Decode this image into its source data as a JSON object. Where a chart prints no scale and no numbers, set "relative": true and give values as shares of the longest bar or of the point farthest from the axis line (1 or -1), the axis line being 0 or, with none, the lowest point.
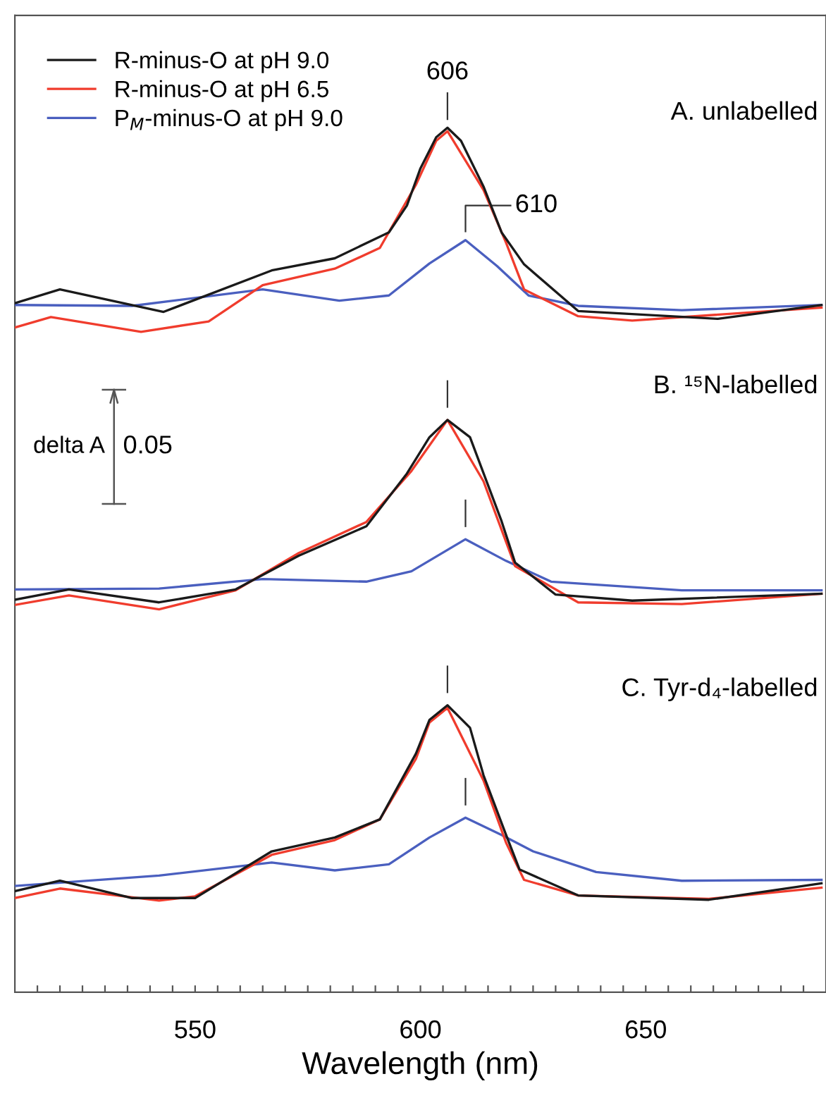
{
  "chart_data": {
    "type": "line",
    "relative": true,
    "xlabel": "Wavelength (nm)",
    "xlim": [
      510,
      690
    ],
    "xticks": [
      {
        "value": 515,
        "label": null
      },
      {
        "value": 520,
        "label": null
      },
      {
        "value": 525,
        "label": null
      },
      {
        "value": 530,
        "label": null
      },
      {
        "value": 535,
        "label": null
      },
      {
        "value": 540,
        "label": null
      },
      {
        "value": 545,
        "label": null
      },
      550,
      {
        "value": 555,
        "label": null
      },
      {
        "value": 560,
        "label": null
      },
      {
        "value": 565,
        "label": null
      },
      {
        "value": 570,
        "label": null
      },
      {
        "value": 575,
        "label": null
      },
      {
        "value": 580,
        "label": null
      },
      {
        "value": 585,
        "label": null
      },
      {
        "value": 590,
        "label": null
      },
      {
        "value": 595,
        "label": null
      },
      600,
      {
        "value": 605,
        "label": null
      },
      {
        "value": 610,
        "label": null
      },
      {
        "value": 615,
        "label": null
      },
      {
        "value": 620,
        "label": null
      },
      {
        "value": 625,
        "label": null
      },
      {
        "value": 630,
        "label": null
      },
      {
        "value": 635,
        "label": null
      },
      {
        "value": 640,
        "label": null
      },
      {
        "value": 645,
        "label": null
      },
      650,
      {
        "value": 655,
        "label": null
      },
      {
        "value": 660,
        "label": null
      },
      {
        "value": 665,
        "label": null
      },
      {
        "value": 670,
        "label": null
      },
      {
        "value": 675,
        "label": null
      },
      {
        "value": 680,
        "label": null
      },
      {
        "value": 685,
        "label": null
      }
    ],
    "tick_labels": "x",
    "grid": false,
    "legend": "top left",
    "marker": "none",
    "line_style": "solid",
    "series": [
      {
        "name": "R-minus-O at pH 9.0",
        "color": "#1a1a1a",
        "x": [
          510,
          520,
          543,
          567,
          581,
          593,
          597,
          600,
          603.5,
          606,
          609,
          614,
          618,
          623,
          635,
          666,
          689
        ],
        "values": [
          0.797,
          0.813,
          0.787,
          0.835,
          0.849,
          0.879,
          0.91,
          0.953,
          0.989,
          1.0,
          0.985,
          0.932,
          0.879,
          0.842,
          0.788,
          0.779,
          0.795
        ]
      },
      {
        "name": "R-minus-O at pH 6.5",
        "color": "#f03c2d",
        "x": [
          510,
          518,
          538,
          553,
          565,
          581,
          591,
          599,
          603.5,
          606,
          614,
          619,
          623,
          635,
          647,
          689
        ],
        "values": [
          0.769,
          0.781,
          0.764,
          0.776,
          0.818,
          0.837,
          0.861,
          0.934,
          0.985,
          0.996,
          0.928,
          0.867,
          0.813,
          0.782,
          0.777,
          0.792
        ]
      },
      {
        "name": "P$_{M}$-minus-O at pH 9.0",
        "color": "#4a5fbf",
        "x": [
          510,
          536,
          565,
          582,
          593,
          602,
          610,
          617,
          624,
          635,
          658,
          689
        ],
        "values": [
          0.795,
          0.794,
          0.813,
          0.8,
          0.806,
          0.843,
          0.87,
          0.84,
          0.806,
          0.794,
          0.789,
          0.795
        ]
      },
      {
        "color": "#1a1a1a",
        "x": [
          510,
          522,
          542,
          559,
          573,
          588,
          597,
          602,
          606,
          611,
          618,
          621,
          630,
          647,
          689
        ],
        "values": [
          0.454,
          0.466,
          0.451,
          0.466,
          0.505,
          0.539,
          0.6,
          0.642,
          0.662,
          0.642,
          0.545,
          0.497,
          0.46,
          0.453,
          0.461
        ]
      },
      {
        "color": "#f03c2d",
        "x": [
          510,
          522,
          542,
          559,
          573,
          588,
          598,
          606,
          614,
          621,
          635,
          658,
          689
        ],
        "values": [
          0.448,
          0.459,
          0.443,
          0.465,
          0.508,
          0.544,
          0.603,
          0.662,
          0.591,
          0.493,
          0.451,
          0.449,
          0.461
        ]
      },
      {
        "color": "#4a5fbf",
        "x": [
          510,
          542,
          565,
          588,
          598,
          610,
          619,
          629,
          658,
          689
        ],
        "values": [
          0.466,
          0.467,
          0.478,
          0.475,
          0.487,
          0.524,
          0.499,
          0.475,
          0.465,
          0.465
        ]
      },
      {
        "color": "#1a1a1a",
        "x": [
          510,
          520,
          536,
          550,
          567,
          581,
          591,
          599,
          602,
          606,
          611,
          614,
          619,
          622,
          635,
          664,
          689
        ],
        "values": [
          0.117,
          0.129,
          0.109,
          0.109,
          0.163,
          0.179,
          0.2,
          0.276,
          0.315,
          0.332,
          0.306,
          0.251,
          0.182,
          0.142,
          0.112,
          0.107,
          0.126
        ]
      },
      {
        "color": "#f03c2d",
        "x": [
          510,
          520,
          542,
          550,
          567,
          581,
          591,
          599,
          602,
          606,
          614,
          619,
          623,
          635,
          664,
          689
        ],
        "values": [
          0.109,
          0.12,
          0.106,
          0.111,
          0.159,
          0.176,
          0.2,
          0.27,
          0.312,
          0.329,
          0.245,
          0.173,
          0.13,
          0.112,
          0.108,
          0.121
        ]
      },
      {
        "color": "#4a5fbf",
        "x": [
          510,
          542,
          567,
          581,
          593,
          602,
          610,
          618,
          625,
          639,
          658,
          689
        ],
        "values": [
          0.123,
          0.135,
          0.15,
          0.141,
          0.148,
          0.179,
          0.202,
          0.182,
          0.163,
          0.139,
          0.129,
          0.13
        ]
      }
    ],
    "annotations": [
      {
        "text": "606",
        "x": 606,
        "y": 1.0
      },
      {
        "text": "610",
        "x": 610,
        "y": 0.87
      },
      "A. unlabelled",
      "B. ¹⁵N-labelled",
      "C. Tyr-d₄-labelled",
      "delta A",
      "0.05"
    ]
  }
}
